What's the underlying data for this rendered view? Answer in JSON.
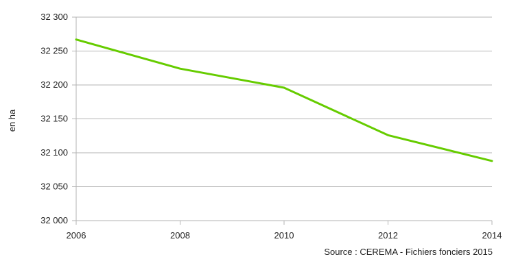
{
  "chart_data": {
    "type": "line",
    "title": "",
    "xlabel": "",
    "ylabel": "en ha",
    "x": [
      2006,
      2008,
      2010,
      2012,
      2014
    ],
    "x_tick_labels": [
      "2006",
      "2008",
      "2010",
      "2012",
      "2014"
    ],
    "y_tick_labels": [
      "32 000",
      "32 050",
      "32 100",
      "32 150",
      "32 200",
      "32 250",
      "32 300"
    ],
    "y_ticks": [
      32000,
      32050,
      32100,
      32150,
      32200,
      32250,
      32300
    ],
    "ylim": [
      32000,
      32300
    ],
    "xlim": [
      2006,
      2014
    ],
    "grid": true,
    "series": [
      {
        "values": [
          32267,
          32224,
          32196,
          32126,
          32088
        ],
        "color": "#66cc00"
      }
    ],
    "source": "Source : CEREMA - Fichiers fonciers 2015"
  }
}
